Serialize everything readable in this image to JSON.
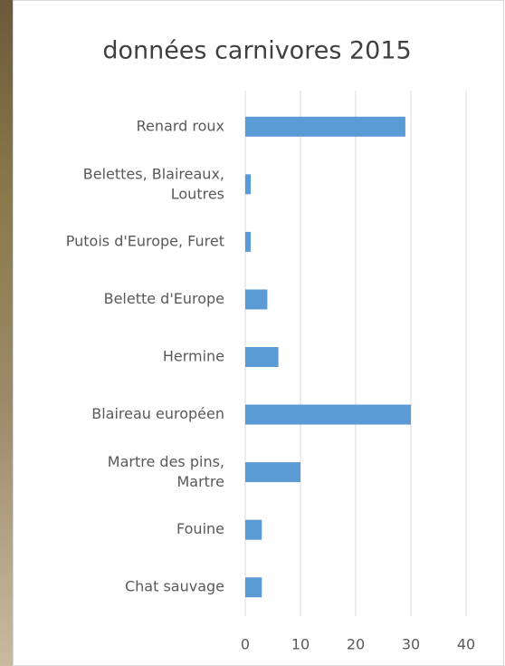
{
  "chart_data": {
    "type": "bar",
    "orientation": "horizontal",
    "title": "données carnivores 2015",
    "categories": [
      "Renard roux",
      "Belettes, Blaireaux, Loutres",
      "Putois d'Europe, Furet",
      "Belette d'Europe",
      "Hermine",
      "Blaireau européen",
      "Martre des pins, Martre",
      "Fouine",
      "Chat sauvage"
    ],
    "values": [
      29,
      1,
      1,
      4,
      6,
      30,
      10,
      3,
      3
    ],
    "color": "#5b9bd5",
    "xlim": [
      0,
      40
    ],
    "xticks": [
      0,
      10,
      20,
      30,
      40
    ],
    "grid": true
  }
}
